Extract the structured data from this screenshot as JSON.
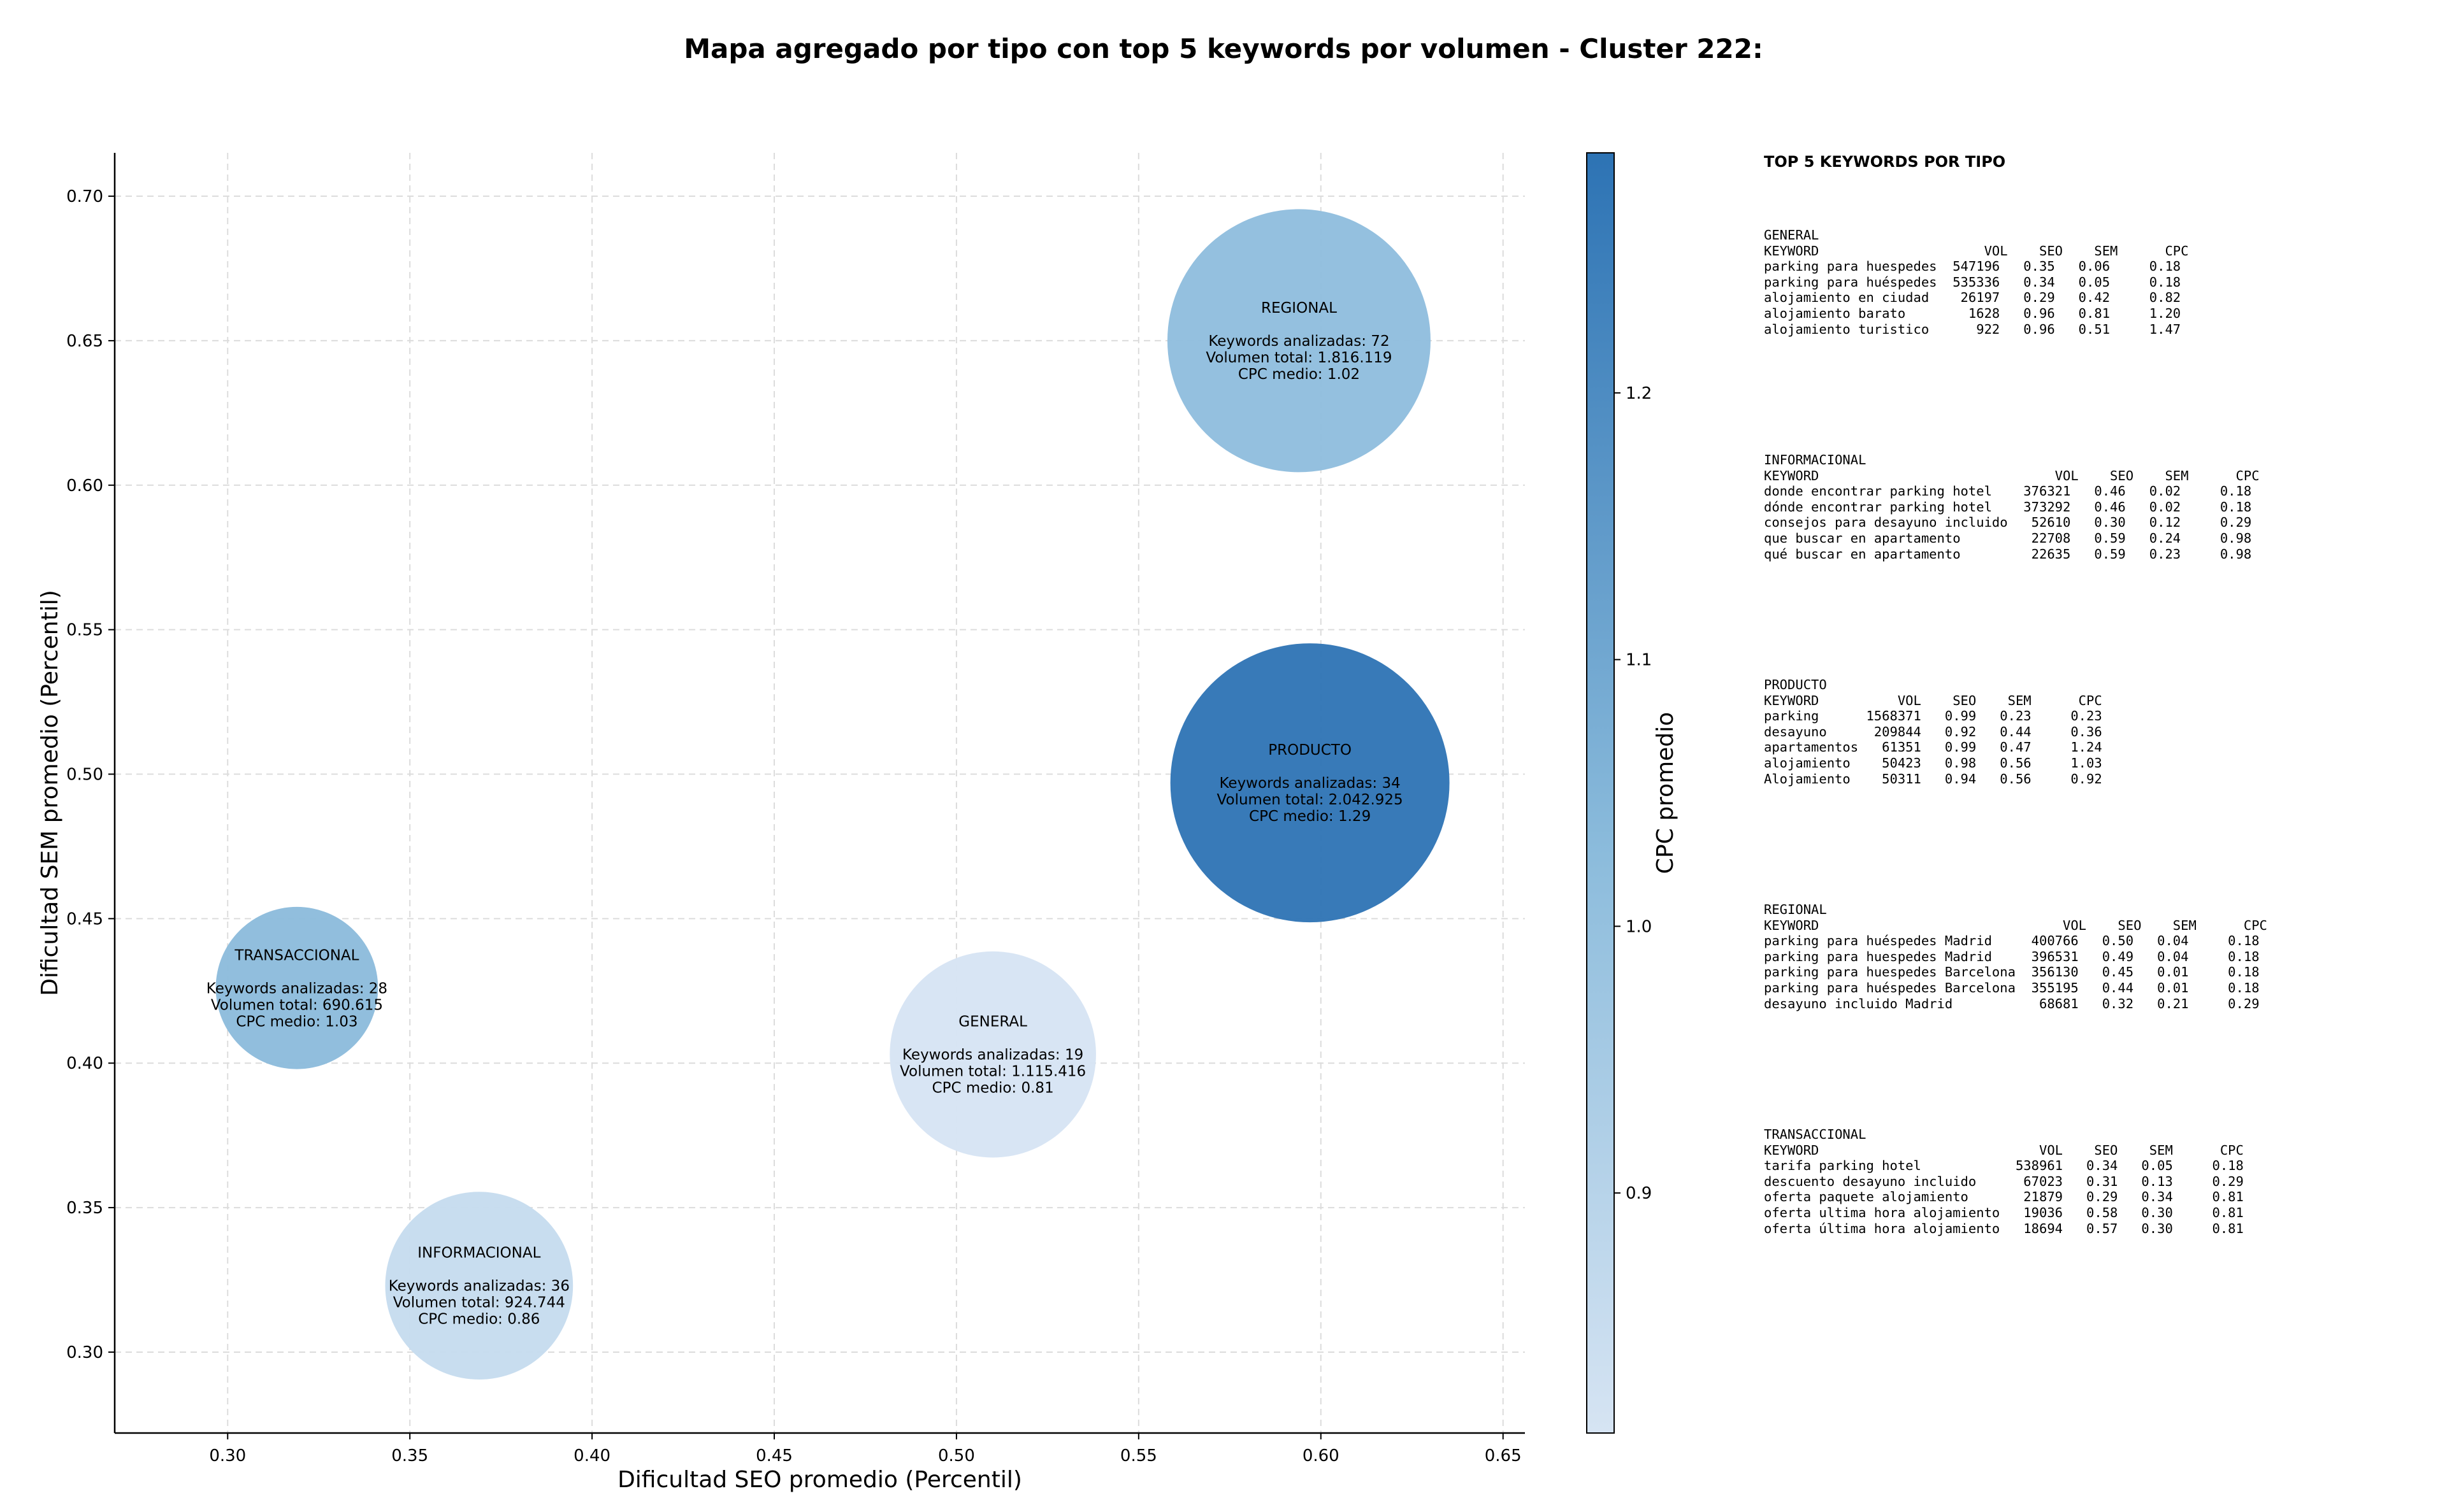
{
  "title": "Mapa agregado por tipo con top 5 keywords por volumen - Cluster 222:",
  "chart_data": {
    "type": "scatter",
    "subtype": "bubble",
    "xlabel": "Dificultad SEO promedio (Percentil)",
    "ylabel": "Dificultad SEM promedio (Percentil)",
    "xlim": [
      0.269,
      0.656
    ],
    "ylim": [
      0.272,
      0.715
    ],
    "xticks": [
      "0.30",
      "0.35",
      "0.40",
      "0.45",
      "0.50",
      "0.55",
      "0.60",
      "0.65"
    ],
    "yticks": [
      "0.30",
      "0.35",
      "0.40",
      "0.45",
      "0.50",
      "0.55",
      "0.60",
      "0.65",
      "0.70"
    ],
    "grid": true,
    "colorbar": {
      "label": "CPC promedio",
      "min": 0.81,
      "max": 1.29,
      "ticks": [
        "0.9",
        "1.0",
        "1.1",
        "1.2"
      ],
      "colormap": "Blues"
    },
    "points": [
      {
        "type": "REGIONAL",
        "seo": 0.594,
        "sem": 0.65,
        "keywords": 72,
        "volume": 1816119,
        "cpc": 1.02,
        "text": [
          "REGIONAL",
          "",
          "Keywords analizadas: 72",
          "Volumen total: 1.816.119",
          "CPC medio: 1.02"
        ]
      },
      {
        "type": "PRODUCTO",
        "seo": 0.597,
        "sem": 0.497,
        "keywords": 34,
        "volume": 2042925,
        "cpc": 1.29,
        "text": [
          "PRODUCTO",
          "",
          "Keywords analizadas: 34",
          "Volumen total: 2.042.925",
          "CPC medio: 1.29"
        ]
      },
      {
        "type": "TRANSACCIONAL",
        "seo": 0.319,
        "sem": 0.426,
        "keywords": 28,
        "volume": 690615,
        "cpc": 1.03,
        "text": [
          "TRANSACCIONAL",
          "",
          "Keywords analizadas: 28",
          "Volumen total: 690.615",
          "CPC medio: 1.03"
        ]
      },
      {
        "type": "GENERAL",
        "seo": 0.51,
        "sem": 0.403,
        "keywords": 19,
        "volume": 1115416,
        "cpc": 0.81,
        "text": [
          "GENERAL",
          "",
          "Keywords analizadas: 19",
          "Volumen total: 1.115.416",
          "CPC medio: 0.81"
        ]
      },
      {
        "type": "INFORMACIONAL",
        "seo": 0.369,
        "sem": 0.323,
        "keywords": 36,
        "volume": 924744,
        "cpc": 0.86,
        "text": [
          "INFORMACIONAL",
          "",
          "Keywords analizadas: 36",
          "Volumen total: 924.744",
          "CPC medio: 0.86"
        ]
      }
    ]
  },
  "top_keywords": {
    "title": "TOP 5 KEYWORDS POR TIPO",
    "blocks": [
      {
        "name": "GENERAL",
        "lines": [
          "GENERAL",
          "KEYWORD                     VOL    SEO    SEM      CPC",
          "parking para huespedes  547196   0.35   0.06     0.18",
          "parking para huéspedes  535336   0.34   0.05     0.18",
          "alojamiento en ciudad    26197   0.29   0.42     0.82",
          "alojamiento barato        1628   0.96   0.81     1.20",
          "alojamiento turistico      922   0.96   0.51     1.47"
        ]
      },
      {
        "name": "INFORMACIONAL",
        "lines": [
          "INFORMACIONAL",
          "KEYWORD                              VOL    SEO    SEM      CPC",
          "donde encontrar parking hotel    376321   0.46   0.02     0.18",
          "dónde encontrar parking hotel    373292   0.46   0.02     0.18",
          "consejos para desayuno incluido   52610   0.30   0.12     0.29",
          "que buscar en apartamento         22708   0.59   0.24     0.98",
          "qué buscar en apartamento         22635   0.59   0.23     0.98"
        ]
      },
      {
        "name": "PRODUCTO",
        "lines": [
          "PRODUCTO",
          "KEYWORD          VOL    SEO    SEM      CPC",
          "parking      1568371   0.99   0.23     0.23",
          "desayuno      209844   0.92   0.44     0.36",
          "apartamentos   61351   0.99   0.47     1.24",
          "alojamiento    50423   0.98   0.56     1.03",
          "Alojamiento    50311   0.94   0.56     0.92"
        ]
      },
      {
        "name": "REGIONAL",
        "lines": [
          "REGIONAL",
          "KEYWORD                               VOL    SEO    SEM      CPC",
          "parking para huéspedes Madrid     400766   0.50   0.04     0.18",
          "parking para huespedes Madrid     396531   0.49   0.04     0.18",
          "parking para huespedes Barcelona  356130   0.45   0.01     0.18",
          "parking para huéspedes Barcelona  355195   0.44   0.01     0.18",
          "desayuno incluido Madrid           68681   0.32   0.21     0.29"
        ]
      },
      {
        "name": "TRANSACCIONAL",
        "lines": [
          "TRANSACCIONAL",
          "KEYWORD                            VOL    SEO    SEM      CPC",
          "tarifa parking hotel            538961   0.34   0.05     0.18",
          "descuento desayuno incluido      67023   0.31   0.13     0.29",
          "oferta paquete alojamiento       21879   0.29   0.34     0.81",
          "oferta ultima hora alojamiento   19036   0.58   0.30     0.81",
          "oferta última hora alojamiento   18694   0.57   0.30     0.81"
        ]
      }
    ]
  }
}
